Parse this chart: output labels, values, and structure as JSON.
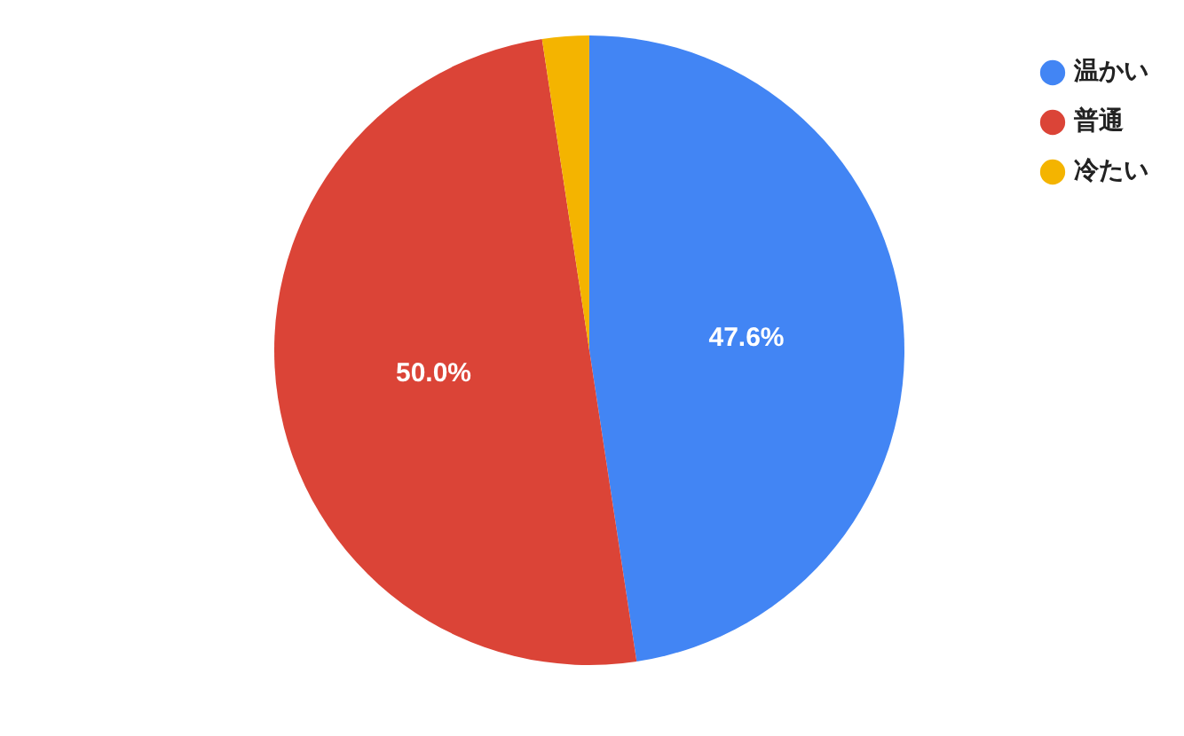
{
  "chart_data": {
    "type": "pie",
    "categories": [
      "温かい",
      "普通",
      "冷たい"
    ],
    "values": [
      47.6,
      50.0,
      2.4
    ],
    "colors": [
      "#4285f4",
      "#db4437",
      "#f4b400"
    ],
    "value_labels": [
      "47.6%",
      "50.0%",
      null
    ],
    "legend": "top right"
  }
}
